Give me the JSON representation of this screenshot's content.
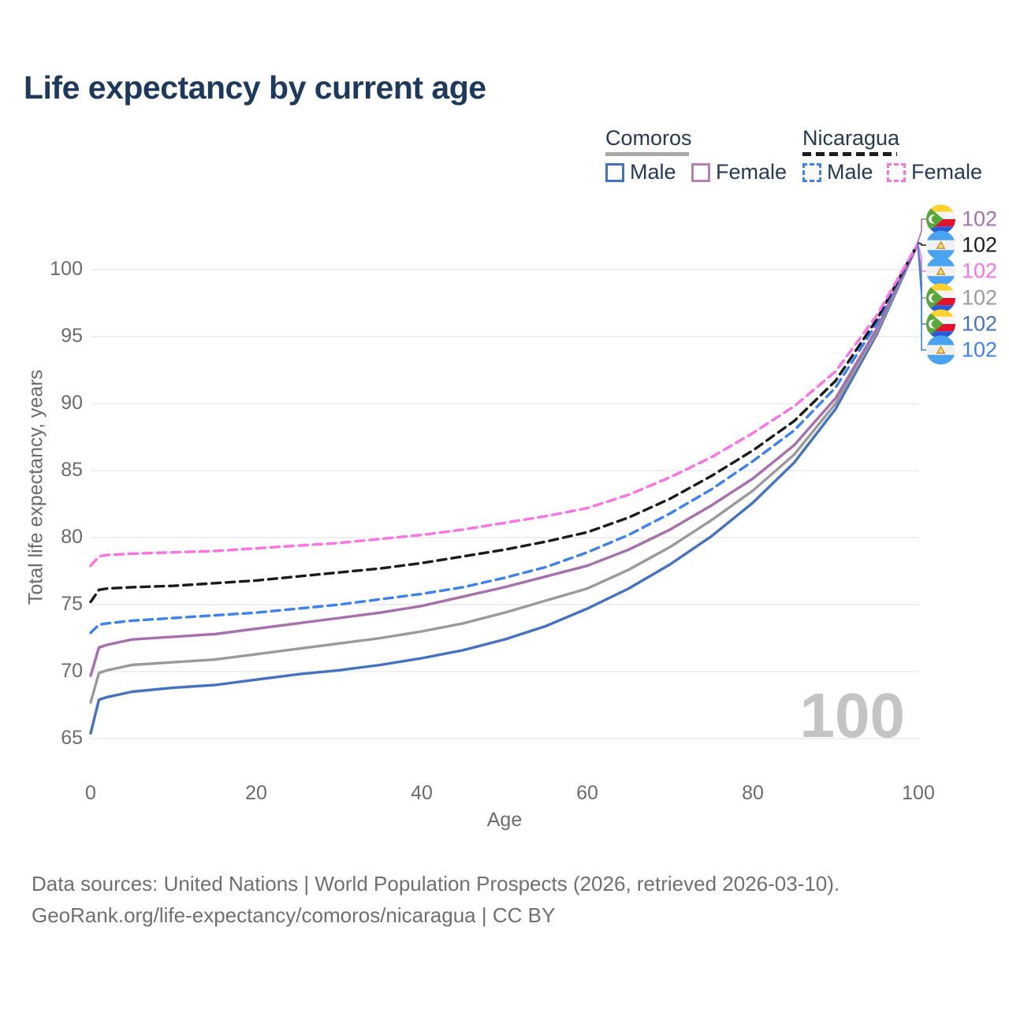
{
  "title": "Life expectancy by current age",
  "legend": {
    "comoros": {
      "label": "Comoros",
      "underline_color": "#a8a8a8",
      "underline_style": "solid",
      "male_label": "Male",
      "female_label": "Female",
      "male_color": "#4372c0",
      "female_color": "#b77fb5"
    },
    "nicaragua": {
      "label": "Nicaragua",
      "underline_color": "#1a1a1a",
      "underline_style": "dashed",
      "male_label": "Male",
      "female_label": "Female",
      "male_color": "#3b82f0",
      "female_color": "#fb72e7"
    }
  },
  "watermark": "100",
  "end_labels": [
    {
      "flag": "comoros-flag-icon",
      "series": "Comoros Female",
      "value": "102",
      "color": "#a76fad"
    },
    {
      "flag": "nicaragua-flag-icon",
      "series": "Nicaragua Both sexes",
      "value": "102",
      "color": "#1a1a1a"
    },
    {
      "flag": "nicaragua-flag-icon",
      "series": "Nicaragua Female",
      "value": "102",
      "color": "#fb72e7"
    },
    {
      "flag": "comoros-flag-icon",
      "series": "Comoros Both sexes",
      "value": "102",
      "color": "#9a9a9a"
    },
    {
      "flag": "comoros-flag-icon",
      "series": "Comoros Male",
      "value": "102",
      "color": "#4372c0"
    },
    {
      "flag": "nicaragua-flag-icon",
      "series": "Nicaragua Male",
      "value": "102",
      "color": "#3b82f0"
    }
  ],
  "footer": {
    "line1": "Data sources: United Nations | World Population Prospects (2026, retrieved 2026-03-10).",
    "line2": "GeoRank.org/life-expectancy/comoros/nicaragua | CC BY"
  },
  "chart_data": {
    "type": "line",
    "title": "Life expectancy by current age",
    "xlabel": "Age",
    "ylabel": "Total life expectancy, years",
    "xlim": [
      0,
      100
    ],
    "ylim": [
      65,
      102
    ],
    "x_ticks": [
      0,
      20,
      40,
      60,
      80,
      100
    ],
    "y_ticks": [
      65,
      70,
      75,
      80,
      85,
      90,
      95,
      100
    ],
    "grid": "horizontal",
    "legend_position": "top-right",
    "x": [
      0,
      1,
      2,
      5,
      10,
      15,
      20,
      25,
      30,
      35,
      40,
      45,
      50,
      55,
      60,
      65,
      70,
      75,
      80,
      85,
      90,
      95,
      100
    ],
    "series": [
      {
        "name": "Comoros Male",
        "country": "Comoros",
        "sex": "Male",
        "color": "#4372c0",
        "dash": "solid",
        "values": [
          65.4,
          67.9,
          68.1,
          68.5,
          68.8,
          69.0,
          69.4,
          69.8,
          70.1,
          70.5,
          71.0,
          71.6,
          72.4,
          73.4,
          74.7,
          76.2,
          78.0,
          80.1,
          82.6,
          85.6,
          89.6,
          95.2,
          102
        ]
      },
      {
        "name": "Comoros Both sexes",
        "country": "Comoros",
        "sex": "Both",
        "color": "#9a9a9a",
        "dash": "solid",
        "values": [
          67.7,
          69.9,
          70.1,
          70.5,
          70.7,
          70.9,
          71.3,
          71.7,
          72.1,
          72.5,
          73.0,
          73.6,
          74.4,
          75.3,
          76.2,
          77.6,
          79.3,
          81.3,
          83.5,
          86.2,
          90.0,
          95.4,
          102
        ]
      },
      {
        "name": "Comoros Female",
        "country": "Comoros",
        "sex": "Female",
        "color": "#a76fad",
        "dash": "solid",
        "values": [
          69.7,
          71.8,
          72.0,
          72.4,
          72.6,
          72.8,
          73.2,
          73.6,
          74.0,
          74.4,
          74.9,
          75.6,
          76.3,
          77.1,
          77.9,
          79.1,
          80.6,
          82.4,
          84.4,
          86.9,
          90.4,
          95.6,
          102
        ]
      },
      {
        "name": "Nicaragua Male",
        "country": "Nicaragua",
        "sex": "Male",
        "color": "#3b82f0",
        "dash": "dashed",
        "values": [
          72.9,
          73.5,
          73.6,
          73.8,
          74.0,
          74.2,
          74.4,
          74.7,
          75.0,
          75.4,
          75.8,
          76.3,
          77.0,
          77.8,
          78.9,
          80.2,
          81.8,
          83.6,
          85.7,
          88.0,
          91.2,
          96.0,
          102
        ]
      },
      {
        "name": "Nicaragua Both sexes",
        "country": "Nicaragua",
        "sex": "Both",
        "color": "#1a1a1a",
        "dash": "dashed",
        "values": [
          75.2,
          76.1,
          76.2,
          76.3,
          76.4,
          76.6,
          76.8,
          77.1,
          77.4,
          77.7,
          78.1,
          78.6,
          79.1,
          79.7,
          80.4,
          81.5,
          82.9,
          84.6,
          86.5,
          88.7,
          91.7,
          96.3,
          102
        ]
      },
      {
        "name": "Nicaragua Female",
        "country": "Nicaragua",
        "sex": "Female",
        "color": "#fb72e7",
        "dash": "dashed",
        "values": [
          77.9,
          78.6,
          78.7,
          78.8,
          78.9,
          79.0,
          79.2,
          79.4,
          79.6,
          79.9,
          80.2,
          80.6,
          81.1,
          81.6,
          82.2,
          83.2,
          84.5,
          86.0,
          87.8,
          89.8,
          92.4,
          96.6,
          102
        ]
      }
    ],
    "end_value_label": "102"
  }
}
